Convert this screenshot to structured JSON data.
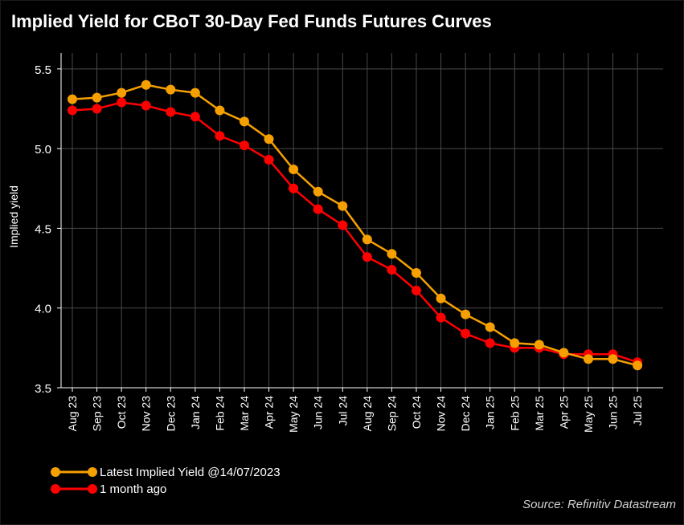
{
  "chart_data": {
    "type": "line",
    "title": "Implied Yield for CBoT 30-Day Fed Funds Futures Curves",
    "xlabel": "",
    "ylabel": "Implied yield",
    "ylim": [
      3.5,
      5.6
    ],
    "yticks": [
      "3.5",
      "4.0",
      "4.5",
      "5.0",
      "5.5"
    ],
    "grid": true,
    "legend_position": "bottom-left",
    "categories": [
      "Aug 23",
      "Sep 23",
      "Oct 23",
      "Nov 23",
      "Dec 23",
      "Jan 24",
      "Feb 24",
      "Mar 24",
      "Apr 24",
      "May 24",
      "Jun 24",
      "Jul 24",
      "Aug 24",
      "Sep 24",
      "Oct 24",
      "Nov 24",
      "Dec 24",
      "Jan 25",
      "Feb 25",
      "Mar 25",
      "Apr 25",
      "May 25",
      "Jun 25",
      "Jul 25"
    ],
    "series": [
      {
        "name": "Latest Implied Yield @14/07/2023",
        "color": "#f5a000",
        "values": [
          5.31,
          5.32,
          5.35,
          5.4,
          5.37,
          5.35,
          5.24,
          5.17,
          5.06,
          4.87,
          4.73,
          4.64,
          4.43,
          4.34,
          4.22,
          4.06,
          3.96,
          3.88,
          3.78,
          3.77,
          3.72,
          3.68,
          3.68,
          3.64
        ]
      },
      {
        "name": "1 month ago",
        "color": "#ff0000",
        "values": [
          5.24,
          5.25,
          5.29,
          5.27,
          5.23,
          5.2,
          5.08,
          5.02,
          4.93,
          4.75,
          4.62,
          4.52,
          4.32,
          4.24,
          4.11,
          3.94,
          3.84,
          3.78,
          3.75,
          3.75,
          3.71,
          3.71,
          3.71,
          3.66
        ]
      }
    ]
  },
  "source": "Source: Refinitiv Datastream"
}
